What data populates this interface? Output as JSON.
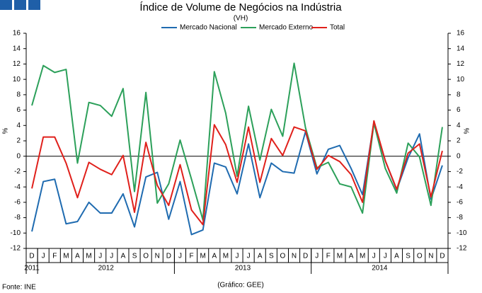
{
  "chart_data": {
    "type": "line",
    "title": "Índice de Volume de Negócios na Indústria",
    "subtitle": "(VH)",
    "y_label": "%",
    "source": "Fonte: INE",
    "credit": "(Gráfico: GEE)",
    "categories": [
      "D",
      "J",
      "F",
      "M",
      "A",
      "M",
      "J",
      "J",
      "A",
      "S",
      "O",
      "N",
      "D",
      "J",
      "F",
      "M",
      "A",
      "M",
      "J",
      "J",
      "A",
      "S",
      "O",
      "N",
      "D",
      "J",
      "F",
      "M",
      "A",
      "M",
      "J",
      "J",
      "A",
      "S",
      "O",
      "N",
      "D"
    ],
    "year_groups": [
      {
        "label": "2011",
        "months": 1
      },
      {
        "label": "2012",
        "months": 12
      },
      {
        "label": "2013",
        "months": 12
      },
      {
        "label": "2014",
        "months": 12
      }
    ],
    "series": [
      {
        "name": "Mercado Nacional",
        "color": "#1f6bb0",
        "values": [
          -9.8,
          -3.3,
          -3.0,
          -8.8,
          -8.5,
          -6.0,
          -7.4,
          -7.4,
          -4.9,
          -9.2,
          -2.7,
          -2.1,
          -8.2,
          -3.3,
          -10.2,
          -9.6,
          -0.9,
          -1.4,
          -4.9,
          1.6,
          -5.4,
          -0.9,
          -2.0,
          -2.2,
          3.2,
          -2.3,
          0.9,
          1.4,
          -1.6,
          -5.0,
          4.4,
          -0.6,
          -4.4,
          -0.2,
          2.9,
          -5.6,
          -1.2
        ]
      },
      {
        "name": "Mercado Externo",
        "color": "#2ca05a",
        "values": [
          6.6,
          11.8,
          10.9,
          11.3,
          -0.9,
          7.0,
          6.6,
          5.2,
          8.8,
          -4.6,
          8.3,
          -6.1,
          -3.6,
          2.1,
          -3.0,
          -8.3,
          11.0,
          5.6,
          -2.6,
          6.5,
          -0.5,
          6.1,
          2.6,
          12.1,
          3.7,
          -1.5,
          -0.8,
          -3.6,
          -4.0,
          -7.4,
          4.3,
          -1.6,
          -4.8,
          1.7,
          -0.1,
          -6.4,
          3.8
        ]
      },
      {
        "name": "Total",
        "color": "#e0201b",
        "values": [
          -4.2,
          2.5,
          2.5,
          -0.9,
          -5.4,
          -0.8,
          -1.7,
          -2.4,
          0.1,
          -7.3,
          1.8,
          -3.8,
          -6.4,
          -1.1,
          -7.0,
          -8.9,
          4.1,
          1.5,
          -3.4,
          3.8,
          -3.4,
          2.3,
          0.1,
          3.8,
          3.3,
          -1.7,
          0.1,
          -0.7,
          -2.4,
          -6.0,
          4.6,
          -0.6,
          -4.3,
          0.4,
          1.6,
          -5.3,
          0.7
        ]
      }
    ],
    "ylim": [
      -12,
      16
    ],
    "yticks": [
      -12,
      -10,
      -8,
      -6,
      -4,
      -2,
      0,
      2,
      4,
      6,
      8,
      10,
      12,
      14,
      16
    ],
    "y2lim": [
      -12,
      16
    ],
    "y2ticks": [
      -12,
      -10,
      -8,
      -6,
      -4,
      -2,
      0,
      2,
      4,
      6,
      8,
      10,
      12,
      14,
      16
    ],
    "legend": "top"
  }
}
